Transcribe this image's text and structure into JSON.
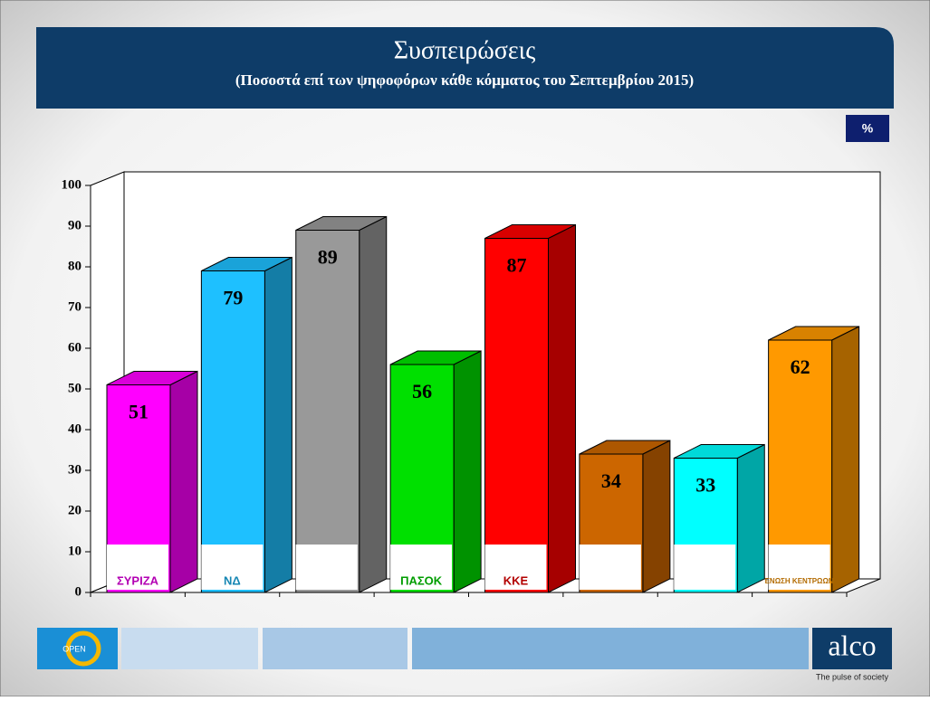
{
  "chart_data": {
    "type": "bar3d",
    "title": "Συσπειρώσεις",
    "subtitle": "(Ποσοστά επί των ψηφοφόρων κάθε κόμματος του Σεπτεμβρίου 2015)",
    "unit_badge": "%",
    "categories": [
      "ΣΥΡΙΖΑ",
      "ΝΔ",
      null,
      "ΠΑΣΟΚ",
      "ΚΚΕ",
      null,
      null,
      "ΕΝΩΣΗ ΚΕΝΤΡΩΩΝ"
    ],
    "values": [
      51,
      79,
      89,
      56,
      87,
      34,
      33,
      62
    ],
    "colors": [
      "#ff00ff",
      "#1ec0ff",
      "#999999",
      "#00e000",
      "#ff0000",
      "#cc6600",
      "#00ffff",
      "#ff9900"
    ],
    "ylim": [
      0,
      100
    ],
    "yticks": [
      0,
      10,
      20,
      30,
      40,
      50,
      60,
      70,
      80,
      90,
      100
    ]
  },
  "footer": {
    "open": "OPEN",
    "brand": "alco",
    "tagline": "The pulse of society"
  }
}
